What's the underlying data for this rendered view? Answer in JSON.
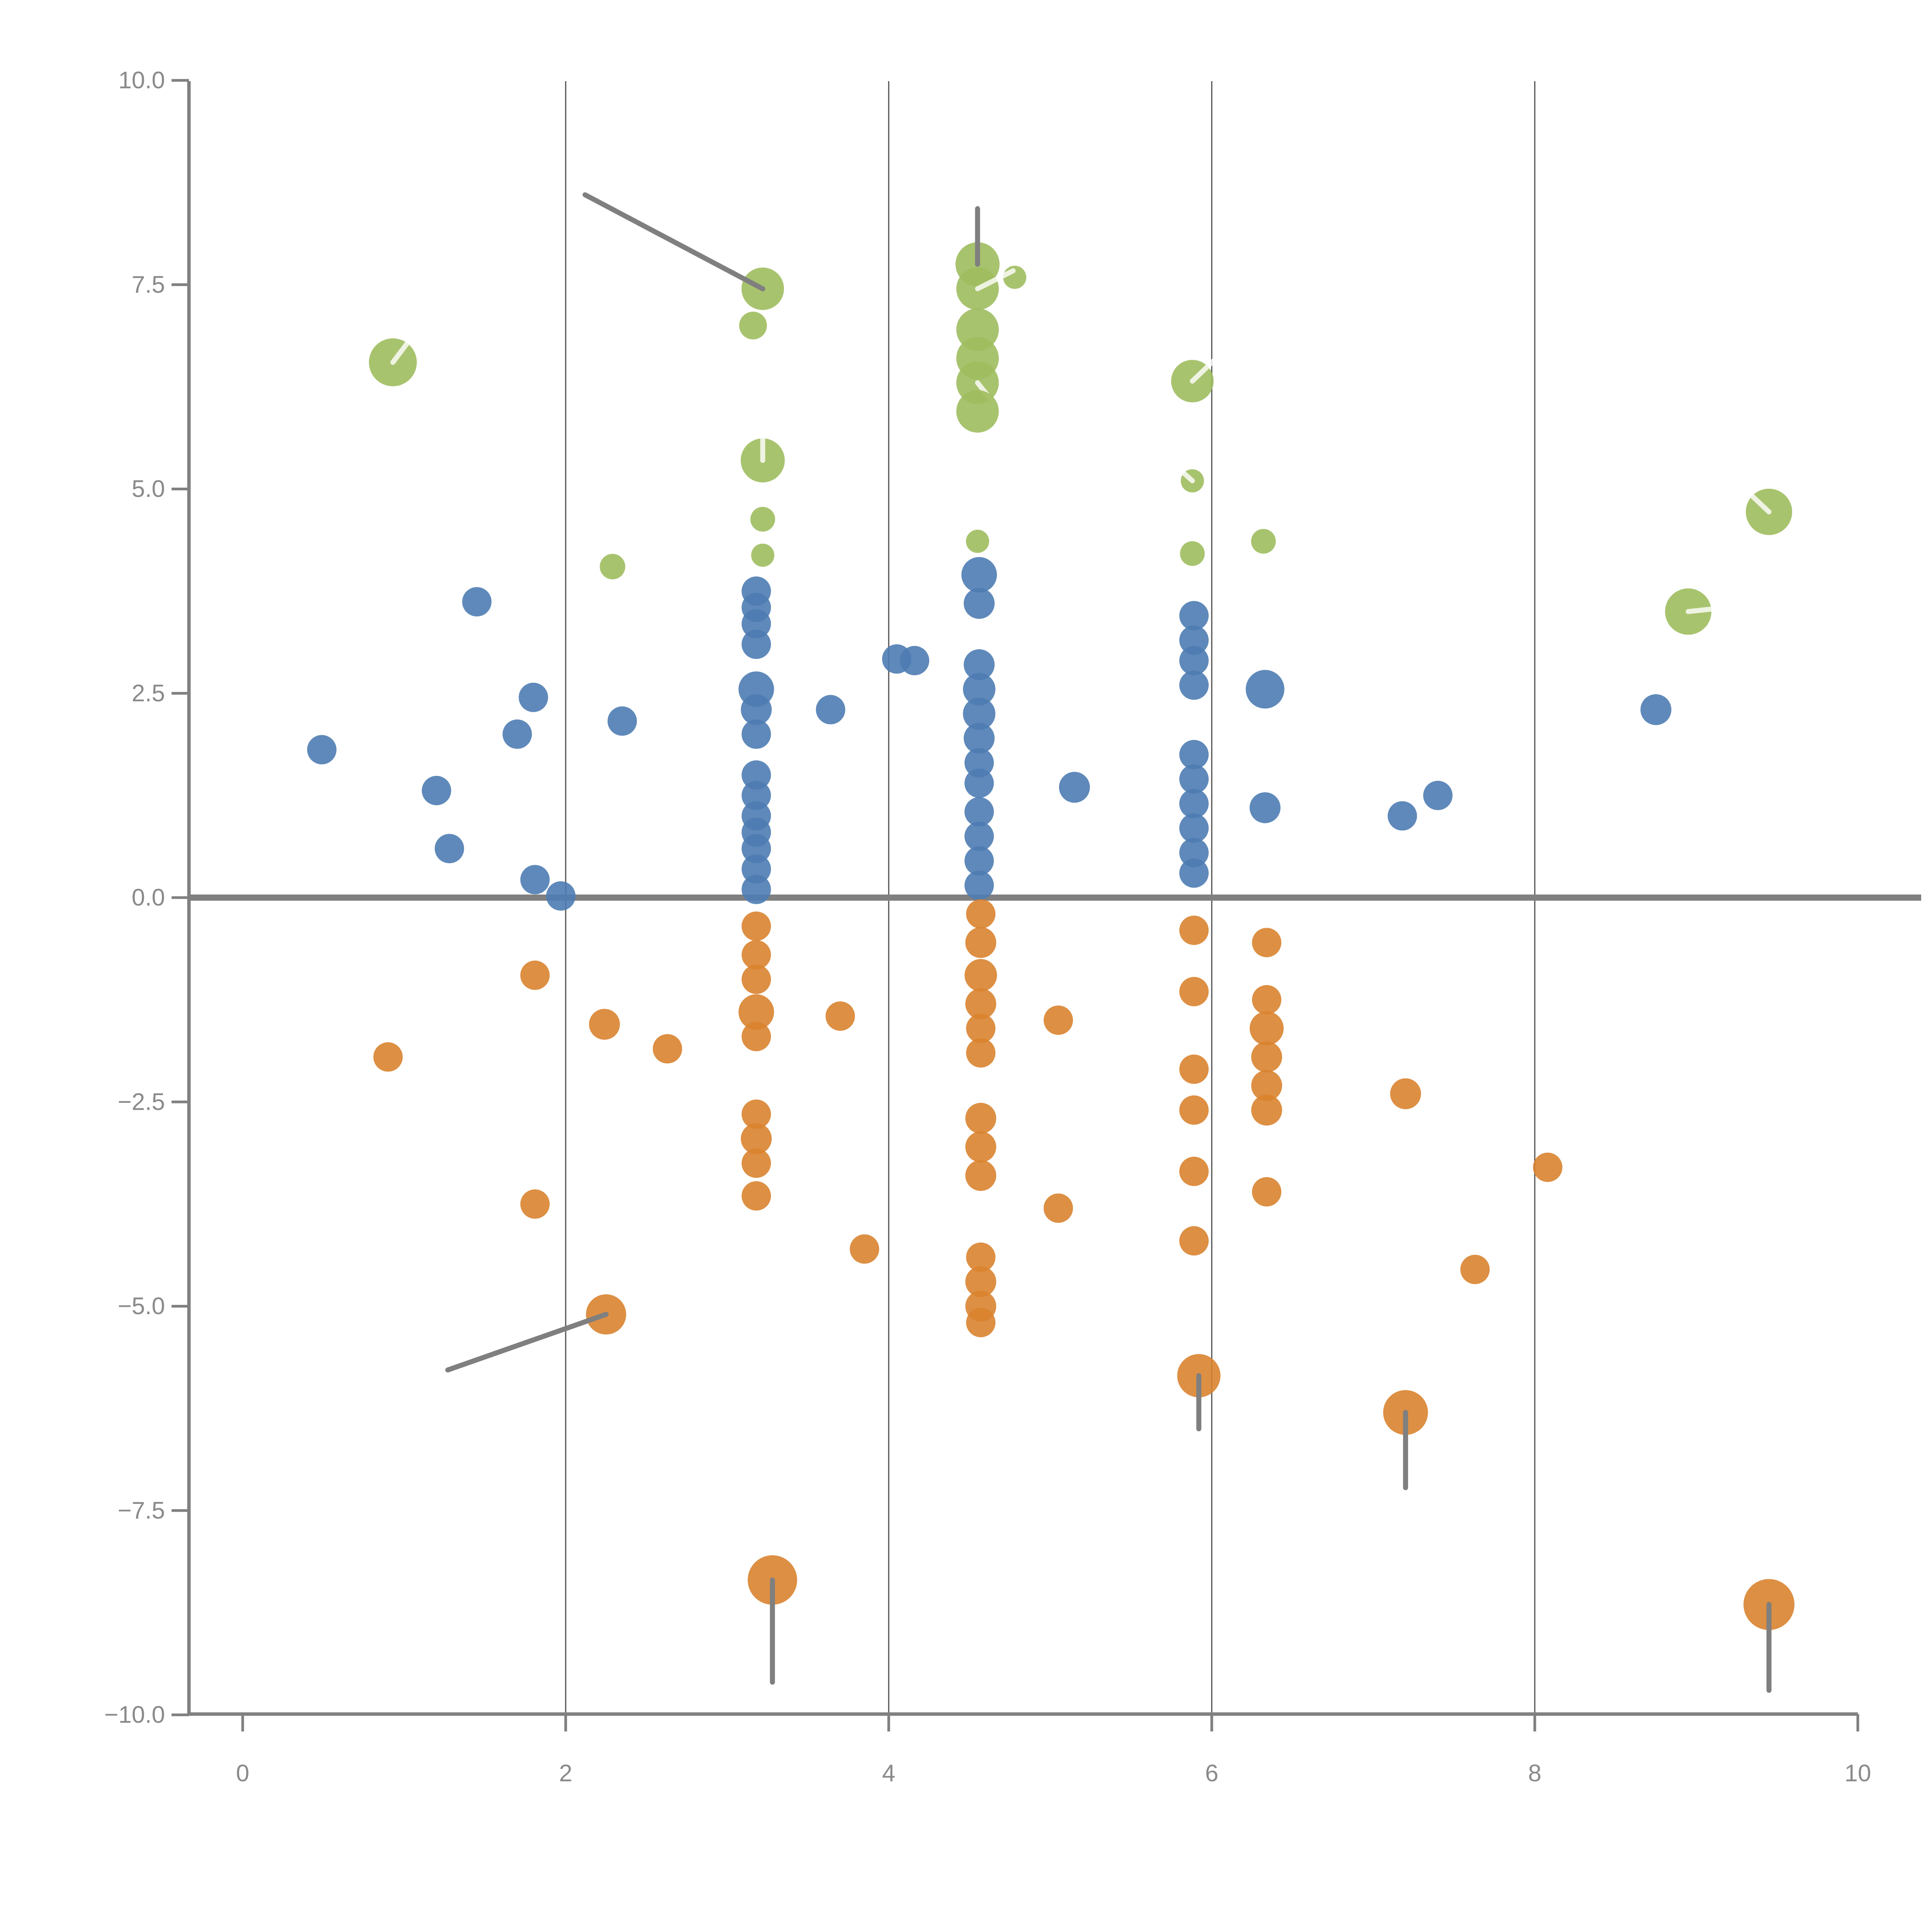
{
  "chart_data": {
    "type": "scatter",
    "title": "",
    "xlabel": "",
    "ylabel": "",
    "xlim": [
      0,
      10
    ],
    "ylim": [
      -10,
      10
    ],
    "grid": "vertical-only",
    "legend": "none",
    "x_axis": {
      "ticks": [
        {
          "v": 0,
          "label": "0"
        },
        {
          "v": 2,
          "label": "2"
        },
        {
          "v": 4,
          "label": "4"
        },
        {
          "v": 6,
          "label": "6"
        },
        {
          "v": 8,
          "label": "8"
        },
        {
          "v": 10,
          "label": "10"
        }
      ]
    },
    "y_axis": {
      "ticks": [
        {
          "v": 10,
          "label": "10.0"
        },
        {
          "v": 7.5,
          "label": "7.5"
        },
        {
          "v": 5,
          "label": "5.0"
        },
        {
          "v": 2.5,
          "label": "2.5"
        },
        {
          "v": 0,
          "label": "0.0"
        },
        {
          "v": -2.5,
          "label": "−2.5"
        },
        {
          "v": -5,
          "label": "−5.0"
        },
        {
          "v": -7.5,
          "label": "−7.5"
        },
        {
          "v": -10,
          "label": "−10.0"
        }
      ]
    },
    "gridlines_x": [
      2,
      4,
      6,
      8
    ],
    "zero_line_y": 0,
    "colors": {
      "green": "#9fbc5e",
      "blue": "#4e7cb2",
      "orange": "#d9832f",
      "grid": "#4d4d4d",
      "axis": "#808080",
      "tick_label": "#8a8a8a",
      "zero_line": "#808080",
      "gray_segment": "#7f7f7f",
      "white_segment": "rgba(255,255,255,0.8)"
    },
    "point_format": "[x, y, radius_px, seg_x2?, seg_y2?, seg_color? ('g'=gray,'w'=white)]",
    "series": [
      {
        "name": "green",
        "points": [
          [
            0.93,
            6.55,
            62,
            1.09,
            6.97,
            "w"
          ],
          [
            3.22,
            7.45,
            55,
            2.12,
            8.6,
            "g"
          ],
          [
            3.16,
            7.0,
            36
          ],
          [
            4.55,
            7.75,
            57,
            4.55,
            8.43,
            "g"
          ],
          [
            4.78,
            7.59,
            30
          ],
          [
            4.55,
            7.45,
            55,
            4.77,
            7.67,
            "w"
          ],
          [
            4.55,
            6.95,
            55
          ],
          [
            4.55,
            6.6,
            55
          ],
          [
            4.55,
            6.3,
            55,
            4.75,
            5.8,
            "w"
          ],
          [
            4.55,
            5.95,
            55
          ],
          [
            3.22,
            5.35,
            57,
            3.22,
            5.86,
            "w"
          ],
          [
            3.22,
            4.63,
            32
          ],
          [
            3.22,
            4.19,
            30
          ],
          [
            2.29,
            4.05,
            33
          ],
          [
            4.55,
            4.36,
            30
          ],
          [
            5.88,
            6.32,
            55,
            6.07,
            6.68,
            "w"
          ],
          [
            5.88,
            5.1,
            30,
            5.74,
            5.35,
            "w"
          ],
          [
            5.88,
            4.21,
            32
          ],
          [
            6.32,
            4.36,
            32
          ],
          [
            9.45,
            4.72,
            60,
            9.22,
            5.15,
            "w"
          ],
          [
            8.95,
            3.5,
            60,
            9.23,
            3.56,
            "w"
          ]
        ]
      },
      {
        "name": "blue",
        "points": [
          [
            0.49,
            1.81,
            38
          ],
          [
            1.2,
            1.31,
            38
          ],
          [
            1.45,
            3.62,
            38
          ],
          [
            1.28,
            0.6,
            38
          ],
          [
            1.7,
            2.0,
            38
          ],
          [
            1.8,
            2.45,
            38
          ],
          [
            1.81,
            0.22,
            38
          ],
          [
            1.97,
            0.02,
            38
          ],
          [
            2.35,
            2.16,
            38
          ],
          [
            3.18,
            3.75,
            38
          ],
          [
            3.18,
            3.55,
            38
          ],
          [
            3.18,
            3.35,
            38
          ],
          [
            3.18,
            3.1,
            38
          ],
          [
            3.18,
            2.55,
            46
          ],
          [
            3.18,
            2.3,
            40
          ],
          [
            3.18,
            2.0,
            38
          ],
          [
            3.18,
            1.5,
            38
          ],
          [
            3.18,
            1.25,
            38
          ],
          [
            3.18,
            1.0,
            38
          ],
          [
            3.18,
            0.8,
            38
          ],
          [
            3.18,
            0.6,
            38
          ],
          [
            3.18,
            0.35,
            38
          ],
          [
            3.18,
            0.1,
            38
          ],
          [
            3.64,
            2.3,
            38
          ],
          [
            4.05,
            2.92,
            38
          ],
          [
            4.16,
            2.9,
            38
          ],
          [
            4.56,
            3.95,
            46
          ],
          [
            4.56,
            3.6,
            40
          ],
          [
            4.56,
            2.85,
            40
          ],
          [
            4.56,
            2.55,
            42
          ],
          [
            4.56,
            2.25,
            42
          ],
          [
            4.56,
            1.95,
            40
          ],
          [
            4.56,
            1.65,
            38
          ],
          [
            4.56,
            1.4,
            38
          ],
          [
            4.56,
            1.05,
            38
          ],
          [
            4.56,
            0.75,
            38
          ],
          [
            4.56,
            0.45,
            38
          ],
          [
            4.56,
            0.15,
            38
          ],
          [
            5.15,
            1.35,
            40
          ],
          [
            5.89,
            3.45,
            38
          ],
          [
            5.89,
            3.15,
            38
          ],
          [
            5.89,
            2.9,
            38
          ],
          [
            5.89,
            2.6,
            38
          ],
          [
            5.89,
            1.75,
            38
          ],
          [
            5.89,
            1.45,
            38
          ],
          [
            5.89,
            1.15,
            38
          ],
          [
            5.89,
            0.85,
            38
          ],
          [
            5.89,
            0.55,
            38
          ],
          [
            5.89,
            0.3,
            38
          ],
          [
            6.33,
            2.55,
            50
          ],
          [
            6.33,
            1.1,
            40
          ],
          [
            7.18,
            1.0,
            38
          ],
          [
            7.4,
            1.25,
            38
          ],
          [
            8.75,
            2.3,
            40
          ]
        ]
      },
      {
        "name": "orange",
        "points": [
          [
            0.9,
            -1.95,
            38
          ],
          [
            1.81,
            -0.95,
            38
          ],
          [
            2.24,
            -1.55,
            40
          ],
          [
            2.63,
            -1.85,
            38
          ],
          [
            1.81,
            -3.75,
            38
          ],
          [
            3.18,
            -0.35,
            38
          ],
          [
            3.18,
            -0.7,
            38
          ],
          [
            3.18,
            -1.0,
            38
          ],
          [
            3.18,
            -1.4,
            46
          ],
          [
            3.18,
            -1.7,
            38
          ],
          [
            3.18,
            -2.65,
            38
          ],
          [
            3.18,
            -2.95,
            40
          ],
          [
            3.18,
            -3.25,
            38
          ],
          [
            3.18,
            -3.65,
            38
          ],
          [
            3.7,
            -1.45,
            38
          ],
          [
            3.85,
            -4.3,
            38
          ],
          [
            4.57,
            -0.2,
            38
          ],
          [
            4.57,
            -0.55,
            40
          ],
          [
            4.57,
            -0.95,
            42
          ],
          [
            4.57,
            -1.3,
            40
          ],
          [
            4.57,
            -1.6,
            38
          ],
          [
            4.57,
            -1.9,
            38
          ],
          [
            4.57,
            -2.7,
            40
          ],
          [
            4.57,
            -3.05,
            40
          ],
          [
            4.57,
            -3.4,
            40
          ],
          [
            4.57,
            -4.4,
            38
          ],
          [
            4.57,
            -4.7,
            40
          ],
          [
            4.57,
            -5.0,
            40
          ],
          [
            4.57,
            -5.2,
            38
          ],
          [
            5.05,
            -1.5,
            38
          ],
          [
            5.05,
            -3.8,
            38
          ],
          [
            5.89,
            -0.4,
            38
          ],
          [
            5.89,
            -1.15,
            38
          ],
          [
            5.89,
            -2.1,
            38
          ],
          [
            5.89,
            -2.6,
            38
          ],
          [
            5.89,
            -3.35,
            38
          ],
          [
            5.89,
            -4.2,
            38
          ],
          [
            6.34,
            -0.55,
            38
          ],
          [
            6.34,
            -1.25,
            38
          ],
          [
            6.34,
            -1.6,
            44
          ],
          [
            6.34,
            -1.95,
            40
          ],
          [
            6.34,
            -2.3,
            40
          ],
          [
            6.34,
            -2.6,
            40
          ],
          [
            6.34,
            -3.6,
            38
          ],
          [
            7.2,
            -2.4,
            40
          ],
          [
            7.63,
            -4.55,
            38
          ],
          [
            8.08,
            -3.3,
            38
          ],
          [
            2.25,
            -5.1,
            52,
            1.27,
            -5.78,
            "g"
          ],
          [
            5.92,
            -5.85,
            56,
            5.92,
            -6.5,
            "g"
          ],
          [
            7.2,
            -6.3,
            58,
            7.2,
            -7.22,
            "g"
          ],
          [
            3.28,
            -8.35,
            64,
            3.28,
            -9.6,
            "g"
          ],
          [
            9.45,
            -8.65,
            66,
            9.45,
            -9.7,
            "g"
          ]
        ]
      }
    ]
  }
}
